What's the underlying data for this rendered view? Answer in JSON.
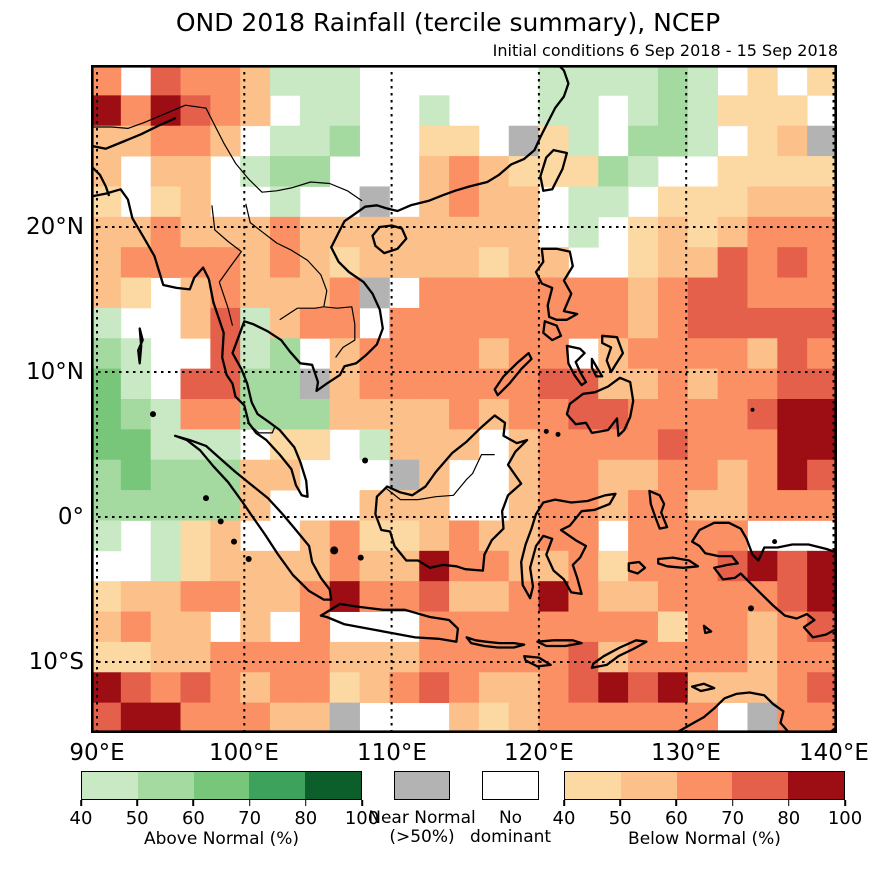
{
  "title": "OND 2018 Rainfall (tercile summary), NCEP",
  "subtitle": "Initial conditions 6 Sep 2018 - 15 Sep 2018",
  "axes": {
    "y_ticks": [
      {
        "label": "20°N",
        "lat": 20
      },
      {
        "label": "10°N",
        "lat": 10
      },
      {
        "label": "0°",
        "lat": 0
      },
      {
        "label": "10°S",
        "lat": -10
      }
    ],
    "x_ticks": [
      {
        "label": "90°E",
        "lon": 90
      },
      {
        "label": "100°E",
        "lon": 100
      },
      {
        "label": "110°E",
        "lon": 110
      },
      {
        "label": "120°E",
        "lon": 120
      },
      {
        "label": "130°E",
        "lon": 130
      },
      {
        "label": "140°E",
        "lon": 140
      }
    ]
  },
  "legend": {
    "above": {
      "label": "Above Normal (%)",
      "ticks": [
        "40",
        "50",
        "60",
        "70",
        "80",
        "100"
      ],
      "colors": [
        "#c9e8c4",
        "#a4d9a0",
        "#77c679",
        "#3da35c",
        "#0c5e2b"
      ]
    },
    "near": {
      "line1": "Near Normal",
      "line2": "(>50%)",
      "color": "#b3b3b3"
    },
    "none": {
      "line1": "No",
      "line2": "dominant",
      "color": "#ffffff"
    },
    "below": {
      "label": "Below Normal (%)",
      "ticks": [
        "40",
        "50",
        "60",
        "70",
        "80",
        "100"
      ],
      "colors": [
        "#fcd9a2",
        "#fcc18a",
        "#fa9063",
        "#e4604a",
        "#9c0d14"
      ]
    }
  },
  "chart_data": {
    "type": "heatmap",
    "description": "Tercile probability summary on ~2 deg grid. Codes: '.'=no dominant tercile (white), 'n'=near normal >50% (gray), 'a'-'e'=above normal 40-50,50-60,60-70,70-80,80-100%, '1'-'5'=below normal 40-50,50-60,60-70,70-80,80-100%",
    "lon_range": [
      89.6,
      140.4
    ],
    "lat_range": [
      -14.9,
      31.2
    ],
    "cols": 25,
    "rows": 22,
    "legend_bins": [
      40,
      50,
      60,
      70,
      80,
      100
    ],
    "palette": {
      ".": "#ffffff",
      "n": "#b3b3b3",
      "a": "#c9e8c4",
      "b": "#a4d9a0",
      "c": "#77c679",
      "d": "#3da35c",
      "e": "#0c5e2b",
      "1": "#fcd9a2",
      "2": "#fcc18a",
      "3": "#fa9063",
      "4": "#e4604a",
      "5": "#9c0d14"
    },
    "cells": [
      "3.4332aaa......aaaaba.1.1",
      "535432.aa..a...aa.aba111.",
      "22332.aab..11.n1a.bba.12n",
      "2.22.abb...232111ba..1111",
      "1.12..a..n.2322.aa.111222",
      "223222322222222.a.1212333",
      "2333323212222122..1224343",
      "21.232223n.33333332344333",
      "a..24a233.333333332344444",
      "ba..4ab.23333233.23333243",
      "ca.44bbn23333334422323344",
      "cba33bbb22223233443333455",
      "ccaaa.11.a222.23333433355",
      "bcbbb22...n2..23322332354",
      "bbbbb2...222..23323322333",
      "a.a12..2311232233.3333...",
      "..a1222232253322313334545",
      "1223322353342235322333345",
      "2322.2.3...33333333133234",
      "1122333322233333423333233",
      "5434323312343223454522234",
      "45533322n...212333333.n33"
    ]
  }
}
